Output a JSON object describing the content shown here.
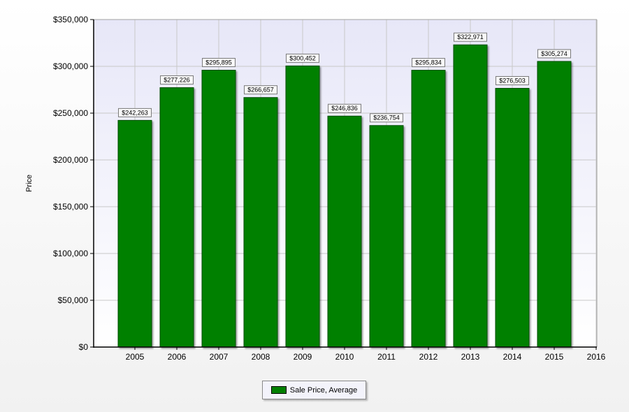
{
  "chart_data": {
    "type": "bar",
    "categories": [
      "2005",
      "2006",
      "2007",
      "2008",
      "2009",
      "2010",
      "2011",
      "2012",
      "2013",
      "2014",
      "2015"
    ],
    "x_ticks": [
      "2005",
      "2006",
      "2007",
      "2008",
      "2009",
      "2010",
      "2011",
      "2012",
      "2013",
      "2014",
      "2015",
      "2016"
    ],
    "series": [
      {
        "name": "Sale Price, Average",
        "values": [
          242263,
          277226,
          295895,
          266657,
          300452,
          246836,
          236754,
          295834,
          322971,
          276503,
          305274
        ],
        "labels": [
          "$242,263",
          "$277,226",
          "$295,895",
          "$266,657",
          "$300,452",
          "$246,836",
          "$236,754",
          "$295,834",
          "$322,971",
          "$276,503",
          "$305,274"
        ]
      }
    ],
    "ylabel": "Price",
    "ylim": [
      0,
      350000
    ],
    "y_ticks": [
      0,
      50000,
      100000,
      150000,
      200000,
      250000,
      300000,
      350000
    ],
    "y_tick_labels": [
      "$0",
      "$50,000",
      "$100,000",
      "$150,000",
      "$200,000",
      "$250,000",
      "$300,000",
      "$350,000"
    ],
    "grid": true,
    "legend_position": "bottom-center",
    "colors": {
      "bar_fill": "#008000",
      "bar_edge": "#004d00",
      "plot_bg_top": "#e7e7f8",
      "plot_bg_bottom": "#ffffff",
      "grid": "#c8c8c8"
    }
  },
  "legend": {
    "label": "Sale Price, Average"
  }
}
